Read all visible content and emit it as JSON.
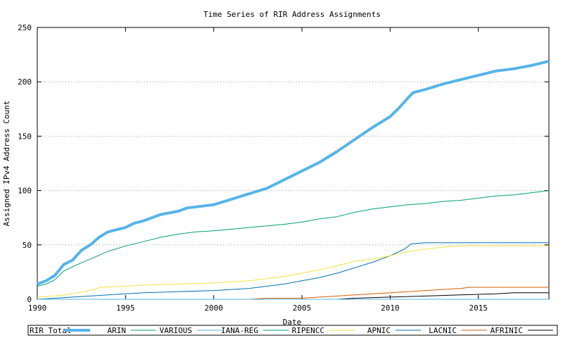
{
  "chart_data": {
    "type": "line",
    "title": "Time Series of RIR Address Assignments",
    "xlabel": "Date",
    "ylabel": "Assigned IPv4 Address Count",
    "xlim": [
      1990,
      2019
    ],
    "ylim": [
      0,
      250
    ],
    "x_ticks": [
      1990,
      1995,
      2000,
      2005,
      2010,
      2015
    ],
    "y_ticks": [
      0,
      50,
      100,
      150,
      200,
      250
    ],
    "grid": "horizontal dotted",
    "legend_position": "bottom",
    "series": [
      {
        "name": "RIR Total",
        "color": "#56b4e9",
        "width": "thick",
        "points": [
          [
            1990,
            14
          ],
          [
            1990.5,
            17
          ],
          [
            1991,
            22
          ],
          [
            1991.5,
            32
          ],
          [
            1992,
            36
          ],
          [
            1992.5,
            45
          ],
          [
            1993,
            50
          ],
          [
            1993.5,
            57
          ],
          [
            1994,
            62
          ],
          [
            1995,
            66
          ],
          [
            1995.5,
            70
          ],
          [
            1996,
            72
          ],
          [
            1997,
            78
          ],
          [
            1998,
            81
          ],
          [
            1998.5,
            84
          ],
          [
            1999,
            85
          ],
          [
            2000,
            87
          ],
          [
            2001,
            92
          ],
          [
            2002,
            97
          ],
          [
            2003,
            102
          ],
          [
            2004,
            110
          ],
          [
            2005,
            118
          ],
          [
            2006,
            126
          ],
          [
            2007,
            136
          ],
          [
            2008,
            147
          ],
          [
            2009,
            158
          ],
          [
            2010,
            168
          ],
          [
            2010.5,
            176
          ],
          [
            2011,
            185
          ],
          [
            2011.3,
            190
          ],
          [
            2012,
            193
          ],
          [
            2013,
            198
          ],
          [
            2014,
            202
          ],
          [
            2015,
            206
          ],
          [
            2016,
            210
          ],
          [
            2017,
            212
          ],
          [
            2018,
            215
          ],
          [
            2019,
            219
          ]
        ]
      },
      {
        "name": "ARIN",
        "color": "#009e73",
        "width": "thin",
        "points": [
          [
            1990,
            12
          ],
          [
            1990.5,
            14
          ],
          [
            1991,
            18
          ],
          [
            1991.5,
            26
          ],
          [
            1992,
            30
          ],
          [
            1993,
            37
          ],
          [
            1994,
            44
          ],
          [
            1995,
            49
          ],
          [
            1996,
            53
          ],
          [
            1997,
            57
          ],
          [
            1998,
            60
          ],
          [
            1999,
            62
          ],
          [
            2000,
            63
          ],
          [
            2002,
            66
          ],
          [
            2004,
            69
          ],
          [
            2005,
            71
          ],
          [
            2006,
            74
          ],
          [
            2007,
            76
          ],
          [
            2008,
            80
          ],
          [
            2009,
            83
          ],
          [
            2010,
            85
          ],
          [
            2011,
            87
          ],
          [
            2012,
            88
          ],
          [
            2013,
            90
          ],
          [
            2014,
            91
          ],
          [
            2015,
            93
          ],
          [
            2016,
            95
          ],
          [
            2017,
            96
          ],
          [
            2018,
            98
          ],
          [
            2019,
            100
          ]
        ]
      },
      {
        "name": "VARIOUS",
        "color": "#56b4e9",
        "width": "thin",
        "points": [
          [
            1990,
            0
          ],
          [
            2019,
            0
          ]
        ]
      },
      {
        "name": "IANA-REG",
        "color": "#009e73",
        "width": "thin",
        "points": [
          [
            1990,
            0
          ],
          [
            2019,
            0
          ]
        ]
      },
      {
        "name": "RIPENCC",
        "color": "#f0e442",
        "width": "thin",
        "points": [
          [
            1990,
            2
          ],
          [
            1991,
            3
          ],
          [
            1992,
            5
          ],
          [
            1993,
            8
          ],
          [
            1993.6,
            11
          ],
          [
            1995,
            12
          ],
          [
            1996,
            13
          ],
          [
            1998,
            14
          ],
          [
            2000,
            15
          ],
          [
            2001,
            16
          ],
          [
            2002,
            17
          ],
          [
            2003,
            19
          ],
          [
            2004,
            21
          ],
          [
            2005,
            24
          ],
          [
            2006,
            27
          ],
          [
            2007,
            31
          ],
          [
            2008,
            35
          ],
          [
            2009,
            37
          ],
          [
            2010,
            40
          ],
          [
            2011,
            44
          ],
          [
            2012,
            46
          ],
          [
            2013,
            48
          ],
          [
            2014,
            49
          ],
          [
            2016,
            49
          ],
          [
            2019,
            49
          ]
        ]
      },
      {
        "name": "APNIC",
        "color": "#0072b2",
        "width": "thin",
        "points": [
          [
            1990,
            0
          ],
          [
            1991,
            1
          ],
          [
            1992,
            2
          ],
          [
            1993,
            3
          ],
          [
            1994,
            4
          ],
          [
            1995,
            5
          ],
          [
            1996,
            6
          ],
          [
            1998,
            7
          ],
          [
            2000,
            8
          ],
          [
            2001,
            9
          ],
          [
            2002,
            10
          ],
          [
            2003,
            12
          ],
          [
            2004,
            14
          ],
          [
            2005,
            17
          ],
          [
            2006,
            20
          ],
          [
            2007,
            24
          ],
          [
            2008,
            29
          ],
          [
            2009,
            34
          ],
          [
            2010,
            40
          ],
          [
            2010.8,
            46
          ],
          [
            2011.2,
            51
          ],
          [
            2012,
            52
          ],
          [
            2015,
            52
          ],
          [
            2019,
            52
          ]
        ]
      },
      {
        "name": "LACNIC",
        "color": "#d55e00",
        "width": "thin",
        "points": [
          [
            1990,
            0
          ],
          [
            2002,
            0
          ],
          [
            2003,
            1
          ],
          [
            2005,
            1
          ],
          [
            2006,
            2
          ],
          [
            2007,
            3
          ],
          [
            2008,
            4
          ],
          [
            2009,
            5
          ],
          [
            2010,
            6
          ],
          [
            2011,
            7
          ],
          [
            2012,
            8
          ],
          [
            2013,
            9
          ],
          [
            2014,
            10
          ],
          [
            2014.5,
            11
          ],
          [
            2016,
            11
          ],
          [
            2019,
            11
          ]
        ]
      },
      {
        "name": "AFRINIC",
        "color": "#000000",
        "width": "thin",
        "points": [
          [
            1990,
            0
          ],
          [
            2007,
            0
          ],
          [
            2008,
            1
          ],
          [
            2010,
            2
          ],
          [
            2012,
            3
          ],
          [
            2014,
            4
          ],
          [
            2016,
            5
          ],
          [
            2017,
            6
          ],
          [
            2019,
            6
          ]
        ]
      }
    ]
  }
}
